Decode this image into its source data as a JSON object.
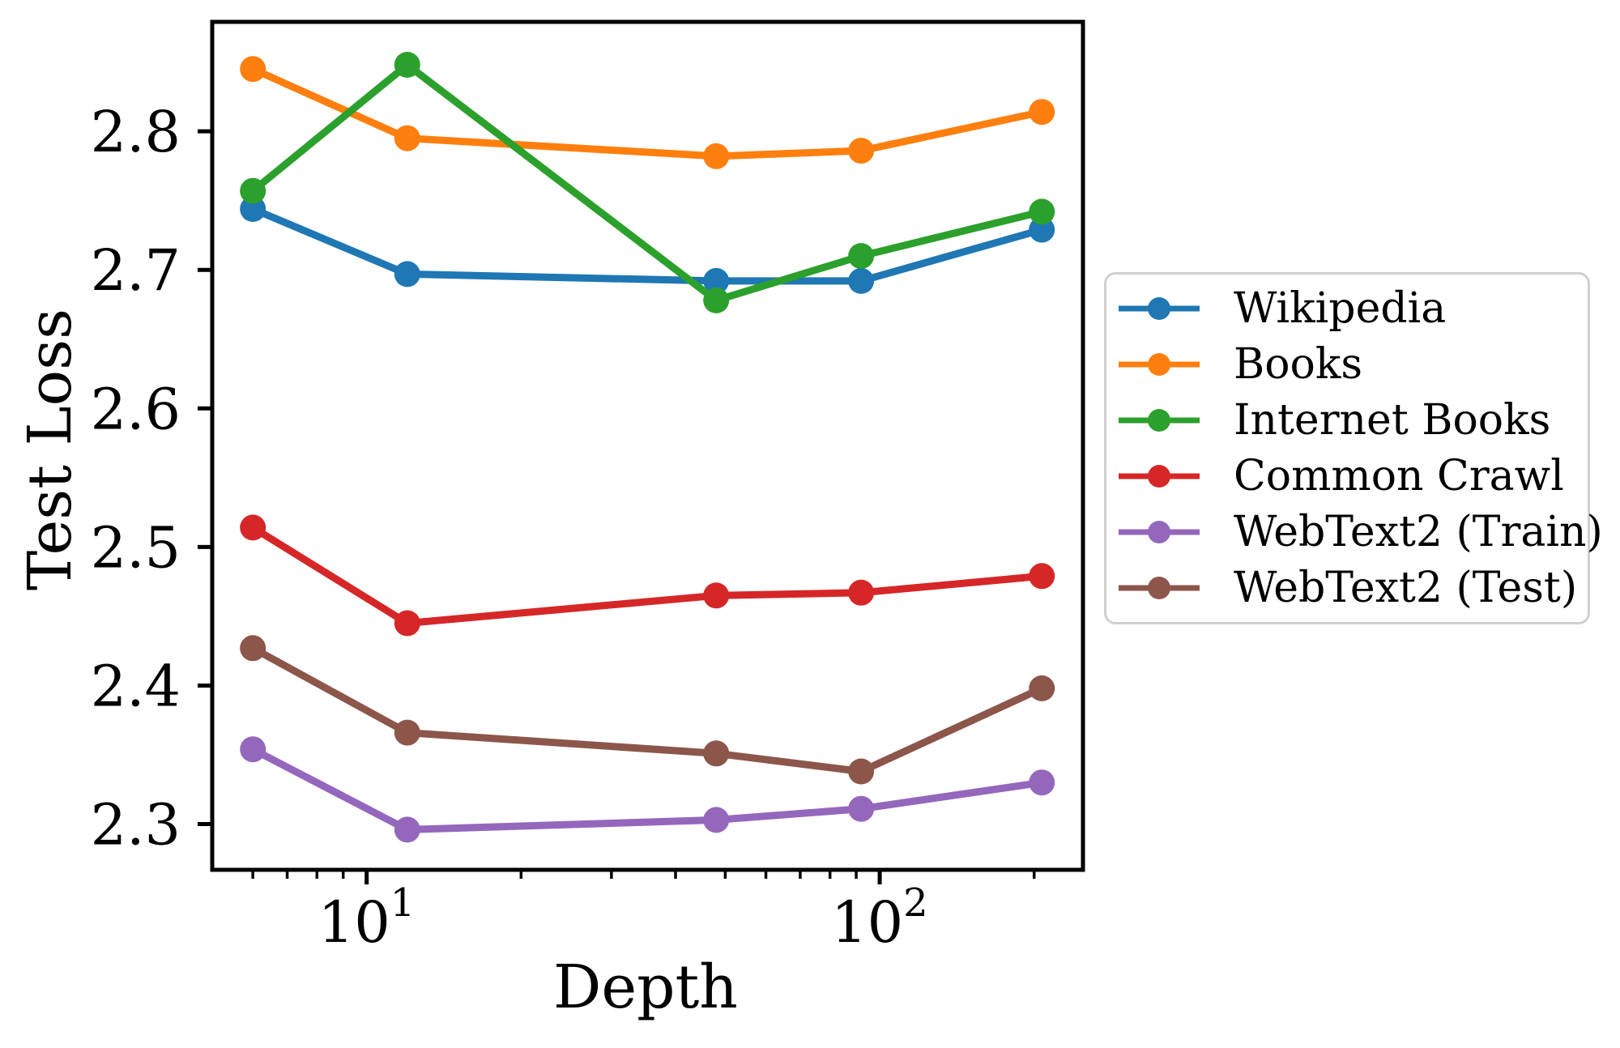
{
  "background": "#ffffff",
  "axis_color": "#000000",
  "legend_border_color": "#d0d0d0",
  "chart_data": {
    "type": "line",
    "title": "",
    "xlabel": "Depth",
    "ylabel": "Test Loss",
    "x_scale": "log",
    "grid": false,
    "legend_position": "center right outside",
    "xlim": [
      5,
      249
    ],
    "ylim": [
      2.267,
      2.879
    ],
    "x": [
      6,
      12,
      48,
      92,
      207
    ],
    "series": [
      {
        "name": "Wikipedia",
        "color": "#1f77b4",
        "values": [
          2.744,
          2.697,
          2.692,
          2.692,
          2.729
        ]
      },
      {
        "name": "Books",
        "color": "#ff7f0e",
        "values": [
          2.845,
          2.795,
          2.782,
          2.786,
          2.814
        ]
      },
      {
        "name": "Internet Books",
        "color": "#2ca02c",
        "values": [
          2.757,
          2.848,
          2.678,
          2.71,
          2.742
        ]
      },
      {
        "name": "Common Crawl",
        "color": "#d62728",
        "values": [
          2.514,
          2.445,
          2.465,
          2.467,
          2.479
        ]
      },
      {
        "name": "WebText2 (Train)",
        "color": "#9467bd",
        "values": [
          2.354,
          2.296,
          2.303,
          2.311,
          2.33
        ]
      },
      {
        "name": "WebText2 (Test)",
        "color": "#8c564b",
        "values": [
          2.427,
          2.366,
          2.351,
          2.338,
          2.398
        ]
      }
    ],
    "yticks": [
      "2.3",
      "2.4",
      "2.5",
      "2.6",
      "2.7",
      "2.8"
    ],
    "ytick_values": [
      2.3,
      2.4,
      2.5,
      2.6,
      2.7,
      2.8
    ],
    "xticks": [
      {
        "label_base": "10",
        "label_exp": "1",
        "value": 10
      },
      {
        "label_base": "10",
        "label_exp": "2",
        "value": 100
      }
    ],
    "x_minor_ticks": [
      6,
      7,
      8,
      9,
      20,
      30,
      40,
      50,
      60,
      70,
      80,
      90,
      200
    ]
  }
}
